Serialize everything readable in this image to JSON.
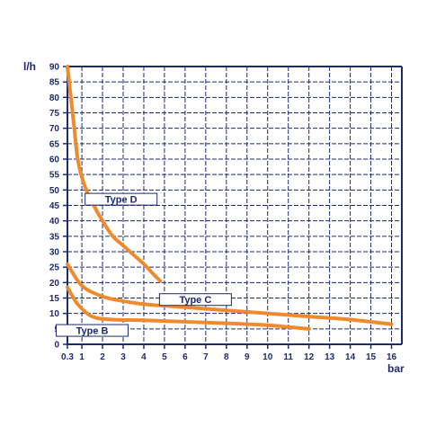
{
  "chart_data": {
    "type": "line",
    "ylabel": "l/h",
    "xlabel": "bar",
    "x_ticks": [
      0.3,
      1,
      2,
      3,
      4,
      5,
      6,
      7,
      8,
      9,
      10,
      11,
      12,
      13,
      14,
      15,
      16
    ],
    "y_ticks": [
      0,
      5,
      10,
      15,
      20,
      25,
      30,
      35,
      40,
      45,
      50,
      55,
      60,
      65,
      70,
      75,
      80,
      85,
      90
    ],
    "xlim": [
      0,
      16.5
    ],
    "ylim": [
      0,
      90
    ],
    "grid": true,
    "line_color": "#f08a2c",
    "grid_color": "#1c2a6e",
    "series": [
      {
        "name": "Type D",
        "label_at": [
          2.9,
          47
        ],
        "points": [
          [
            0.3,
            90
          ],
          [
            0.6,
            72
          ],
          [
            0.8,
            60
          ],
          [
            1.1,
            52
          ],
          [
            1.5,
            46
          ],
          [
            2,
            40
          ],
          [
            2.5,
            35
          ],
          [
            3,
            32
          ],
          [
            3.5,
            29
          ],
          [
            4,
            26
          ],
          [
            4.5,
            22.5
          ],
          [
            4.8,
            20.5
          ]
        ]
      },
      {
        "name": "Type C",
        "label_at": [
          6.5,
          14.5
        ],
        "points": [
          [
            0.3,
            26
          ],
          [
            1,
            19
          ],
          [
            2,
            15.5
          ],
          [
            3,
            14
          ],
          [
            4,
            13
          ],
          [
            5,
            12.5
          ],
          [
            6,
            12
          ],
          [
            8,
            11
          ],
          [
            10,
            10
          ],
          [
            12,
            9
          ],
          [
            14,
            8
          ],
          [
            16,
            6.5
          ]
        ]
      },
      {
        "name": "Type B",
        "label_at": [
          1.5,
          4.5
        ],
        "points": [
          [
            0.3,
            18.5
          ],
          [
            0.8,
            13
          ],
          [
            1.5,
            9
          ],
          [
            2.5,
            8
          ],
          [
            4,
            7.8
          ],
          [
            6,
            7.3
          ],
          [
            8,
            6.8
          ],
          [
            10,
            6.2
          ],
          [
            11,
            5.6
          ],
          [
            12,
            5
          ]
        ]
      }
    ]
  }
}
